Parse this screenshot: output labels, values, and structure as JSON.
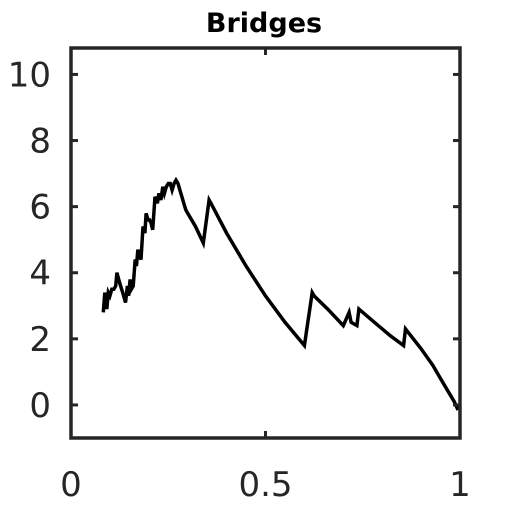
{
  "chart_data": {
    "type": "line",
    "title": "Bridges",
    "xlabel": "",
    "ylabel": "",
    "xlim": [
      0,
      1
    ],
    "ylim": [
      -1,
      10.8
    ],
    "xticks": [
      0,
      0.5,
      1
    ],
    "xtick_labels": [
      "0",
      "0.5",
      "1"
    ],
    "yticks": [
      0,
      2,
      4,
      6,
      8,
      10
    ],
    "ytick_labels": [
      "0",
      "2",
      "4",
      "6",
      "8",
      "10"
    ],
    "grid": false,
    "legend": "none",
    "colors": {
      "line": "#000000",
      "axes": "#262626",
      "background": "#ffffff"
    },
    "series": [
      {
        "x": [
          0.083,
          0.087,
          0.092,
          0.096,
          0.1,
          0.105,
          0.11,
          0.115,
          0.118,
          0.125,
          0.133,
          0.14,
          0.145,
          0.148,
          0.152,
          0.155,
          0.16,
          0.165,
          0.168,
          0.172,
          0.176,
          0.18,
          0.185,
          0.19,
          0.193,
          0.198,
          0.202,
          0.206,
          0.21,
          0.216,
          0.222,
          0.226,
          0.231,
          0.236,
          0.24,
          0.245,
          0.25,
          0.255,
          0.26,
          0.265,
          0.27,
          0.275,
          0.28,
          0.285,
          0.29,
          0.295,
          0.3,
          0.32,
          0.34,
          0.355,
          0.36,
          0.4,
          0.45,
          0.5,
          0.55,
          0.6,
          0.62,
          0.625,
          0.66,
          0.7,
          0.715,
          0.72,
          0.735,
          0.74,
          0.78,
          0.82,
          0.855,
          0.86,
          0.9,
          0.93,
          0.95,
          0.97,
          0.985,
          0.993,
          1.0
        ],
        "y": [
          2.8,
          3.4,
          2.9,
          3.4,
          3.3,
          3.5,
          3.5,
          3.6,
          4.0,
          3.7,
          3.4,
          3.1,
          3.6,
          3.3,
          3.8,
          3.5,
          3.6,
          4.4,
          4.2,
          4.7,
          4.5,
          4.4,
          5.4,
          5.2,
          5.8,
          5.6,
          5.6,
          5.5,
          5.3,
          6.3,
          6.1,
          6.4,
          6.2,
          6.6,
          6.4,
          6.6,
          6.7,
          6.7,
          6.5,
          6.7,
          6.8,
          6.7,
          6.5,
          6.3,
          6.1,
          5.9,
          5.8,
          5.4,
          4.9,
          6.2,
          6.1,
          5.2,
          4.2,
          3.3,
          2.5,
          1.8,
          3.4,
          3.3,
          2.9,
          2.4,
          2.8,
          2.5,
          2.4,
          2.9,
          2.5,
          2.1,
          1.8,
          2.3,
          1.7,
          1.2,
          0.8,
          0.4,
          0.1,
          -0.1,
          -0.05
        ]
      }
    ]
  }
}
